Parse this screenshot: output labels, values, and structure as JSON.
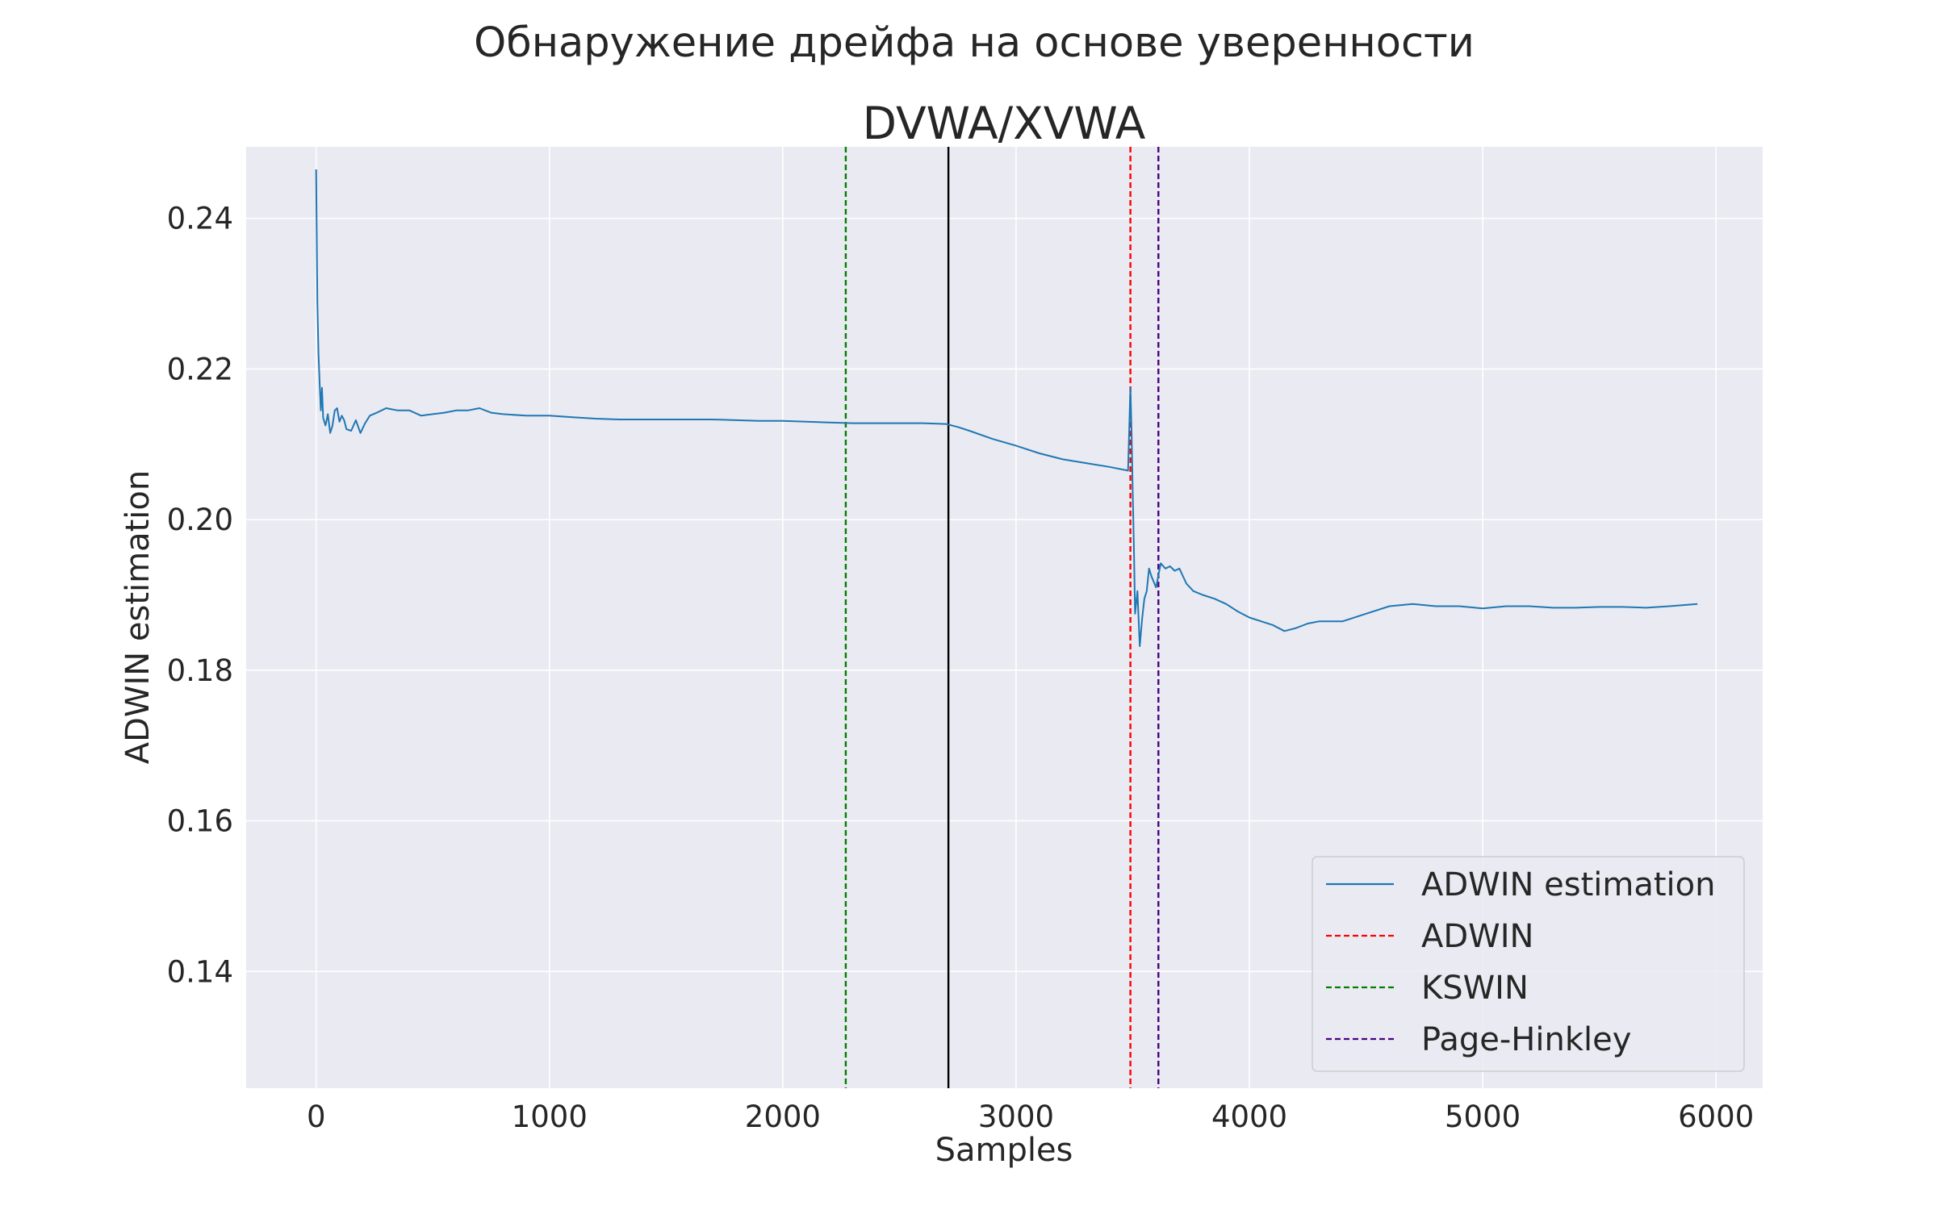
{
  "suptitle": "Обнаружение дрейфа на основе уверенности",
  "chart_data": {
    "type": "line",
    "title": "DVWA/XVWA",
    "xlabel": "Samples",
    "ylabel": "ADWIN estimation",
    "xlim": [
      -300,
      6200
    ],
    "ylim": [
      0.1245,
      0.2495
    ],
    "xticks": [
      0,
      1000,
      2000,
      3000,
      4000,
      5000,
      6000
    ],
    "xtick_labels": [
      "0",
      "1000",
      "2000",
      "3000",
      "4000",
      "5000",
      "6000"
    ],
    "yticks": [
      0.14,
      0.16,
      0.18,
      0.2,
      0.22,
      0.24
    ],
    "ytick_labels": [
      "0.14",
      "0.16",
      "0.18",
      "0.20",
      "0.22",
      "0.24"
    ],
    "grid": true,
    "background": "#eaeaf2",
    "legend_position": "lower right",
    "series": [
      {
        "name": "ADWIN estimation",
        "color": "#1f77b4",
        "x": [
          0,
          5,
          10,
          15,
          20,
          25,
          30,
          40,
          50,
          60,
          70,
          80,
          90,
          100,
          110,
          120,
          130,
          150,
          170,
          190,
          210,
          230,
          260,
          300,
          350,
          400,
          450,
          500,
          550,
          600,
          650,
          700,
          750,
          800,
          900,
          1000,
          1100,
          1200,
          1300,
          1400,
          1500,
          1600,
          1700,
          1800,
          1900,
          2000,
          2100,
          2200,
          2300,
          2400,
          2500,
          2600,
          2700,
          2750,
          2800,
          2900,
          3000,
          3100,
          3200,
          3300,
          3400,
          3480,
          3490,
          3495,
          3500,
          3505,
          3510,
          3520,
          3530,
          3540,
          3550,
          3560,
          3570,
          3580,
          3600,
          3620,
          3640,
          3660,
          3680,
          3700,
          3730,
          3760,
          3800,
          3850,
          3900,
          3950,
          4000,
          4050,
          4100,
          4150,
          4200,
          4250,
          4300,
          4400,
          4500,
          4600,
          4700,
          4800,
          4900,
          5000,
          5100,
          5200,
          5300,
          5400,
          5500,
          5600,
          5700,
          5800,
          5920
        ],
        "y": [
          0.2465,
          0.229,
          0.222,
          0.218,
          0.2145,
          0.2175,
          0.2135,
          0.2125,
          0.214,
          0.2115,
          0.2125,
          0.2145,
          0.2148,
          0.213,
          0.2138,
          0.2132,
          0.212,
          0.2118,
          0.2132,
          0.2115,
          0.2128,
          0.2138,
          0.2142,
          0.2148,
          0.2145,
          0.2145,
          0.2138,
          0.214,
          0.2142,
          0.2145,
          0.2145,
          0.2148,
          0.2142,
          0.214,
          0.2138,
          0.2138,
          0.2136,
          0.2134,
          0.2133,
          0.2133,
          0.2133,
          0.2133,
          0.2133,
          0.2132,
          0.2131,
          0.2131,
          0.213,
          0.2129,
          0.2128,
          0.2128,
          0.2128,
          0.2128,
          0.2127,
          0.2123,
          0.2118,
          0.2107,
          0.2098,
          0.2088,
          0.208,
          0.2075,
          0.207,
          0.2065,
          0.2175,
          0.2118,
          0.2035,
          0.1965,
          0.1875,
          0.1905,
          0.1832,
          0.1868,
          0.1895,
          0.1905,
          0.1935,
          0.1925,
          0.191,
          0.1942,
          0.1935,
          0.1938,
          0.1932,
          0.1935,
          0.1915,
          0.1905,
          0.19,
          0.1895,
          0.1888,
          0.1878,
          0.187,
          0.1865,
          0.186,
          0.1852,
          0.1856,
          0.1862,
          0.1865,
          0.1865,
          0.1875,
          0.1885,
          0.1888,
          0.1885,
          0.1885,
          0.1882,
          0.1885,
          0.1885,
          0.1883,
          0.1883,
          0.1884,
          0.1884,
          0.1883,
          0.1885,
          0.1888
        ]
      }
    ],
    "vlines": [
      {
        "name": "ADWIN",
        "x": 3490,
        "color": "#ff0000",
        "style": "dashed",
        "legend": true
      },
      {
        "name": "KSWIN",
        "x": 2270,
        "color": "#008000",
        "style": "dashed",
        "legend": true
      },
      {
        "name": "Page-Hinkley",
        "x": 3610,
        "color": "#4b0082",
        "style": "dashed",
        "legend": true
      },
      {
        "name": "",
        "x": 2710,
        "color": "#000000",
        "style": "solid",
        "legend": false
      }
    ],
    "legend_entries": [
      {
        "label": "ADWIN estimation",
        "color": "#1f77b4",
        "style": "solid"
      },
      {
        "label": "ADWIN",
        "color": "#ff0000",
        "style": "dashed"
      },
      {
        "label": "KSWIN",
        "color": "#008000",
        "style": "dashed"
      },
      {
        "label": "Page-Hinkley",
        "color": "#4b0082",
        "style": "dashed"
      }
    ]
  }
}
